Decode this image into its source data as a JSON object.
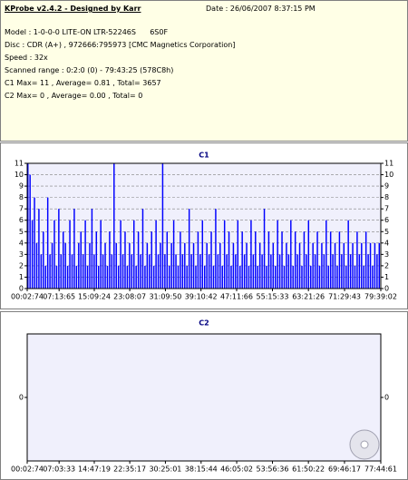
{
  "header": {
    "title": "KProbe v2.4.2 - Designed by Karr",
    "date": "Date : 26/06/2007 8:37:15 PM",
    "lines": [
      "Model : 1-0-0-0 LITE-ON LTR-52246S      6S0F",
      "Disc : CDR (A+) , 972666:795973 [CMC Magnetics Corporation]",
      "Speed : 32x",
      "Scanned range : 0:2:0 (0) - 79:43:25 (578C8h)",
      "C1 Max= 11 , Average= 0.81 , Total= 3657",
      "C2 Max= 0 , Average= 0.00 , Total= 0"
    ]
  },
  "chart_data": [
    {
      "type": "bar",
      "title": "C1",
      "color": "#0000ff",
      "grid": true,
      "values": [
        11,
        10,
        6,
        8,
        4,
        7,
        3,
        5,
        2,
        8,
        3,
        4,
        6,
        2,
        7,
        3,
        5,
        4,
        2,
        6,
        3,
        7,
        2,
        4,
        5,
        3,
        6,
        2,
        4,
        7,
        3,
        5,
        2,
        6,
        3,
        4,
        2,
        5,
        3,
        11,
        4,
        2,
        6,
        3,
        5,
        2,
        4,
        3,
        6,
        2,
        5,
        3,
        7,
        2,
        4,
        3,
        5,
        2,
        6,
        3,
        4,
        11,
        3,
        5,
        2,
        4,
        6,
        3,
        2,
        5,
        3,
        4,
        2,
        7,
        3,
        4,
        2,
        5,
        3,
        6,
        2,
        4,
        3,
        5,
        2,
        7,
        3,
        4,
        2,
        6,
        3,
        5,
        2,
        4,
        3,
        6,
        2,
        5,
        3,
        4,
        2,
        6,
        3,
        5,
        2,
        4,
        3,
        7,
        2,
        5,
        3,
        4,
        2,
        6,
        3,
        5,
        2,
        4,
        3,
        6,
        2,
        5,
        3,
        4,
        2,
        5,
        3,
        6,
        2,
        4,
        3,
        5,
        2,
        4,
        3,
        6,
        2,
        5,
        3,
        4,
        2,
        5,
        3,
        4,
        2,
        6,
        3,
        4,
        2,
        5,
        3,
        4,
        2,
        5,
        3,
        4,
        2,
        4,
        3,
        4
      ],
      "ylim": [
        0,
        11
      ],
      "yticks": [
        0,
        1,
        2,
        3,
        4,
        5,
        6,
        7,
        8,
        9,
        10,
        11
      ],
      "xlim": [
        2.99,
        4779.03
      ],
      "xticks": [
        {
          "value": 2.99,
          "label": "00:02:74"
        },
        {
          "value": 433.87,
          "label": "07:13:65"
        },
        {
          "value": 909.32,
          "label": "15:09:24"
        },
        {
          "value": 1388.09,
          "label": "23:08:07"
        },
        {
          "value": 1869.67,
          "label": "31:09:50"
        },
        {
          "value": 2350.56,
          "label": "39:10:42"
        },
        {
          "value": 2831.88,
          "label": "47:11:66"
        },
        {
          "value": 3315.44,
          "label": "55:15:33"
        },
        {
          "value": 3801.35,
          "label": "63:21:26"
        },
        {
          "value": 4289.57,
          "label": "71:29:43"
        },
        {
          "value": 4779.03,
          "label": "79:39:02"
        }
      ]
    },
    {
      "type": "bar",
      "title": "C2",
      "color": "#0000ff",
      "grid": false,
      "values": [
        0,
        0,
        0,
        0,
        0,
        0,
        0,
        0,
        0,
        0,
        0,
        0,
        0,
        0,
        0,
        0,
        0,
        0,
        0,
        0
      ],
      "ylim": [
        -1,
        1
      ],
      "yticks": [
        0
      ],
      "xlim": [
        2.99,
        4664.81
      ],
      "xticks": [
        {
          "value": 2.99,
          "label": "00:02:74"
        },
        {
          "value": 423.44,
          "label": "07:03:33"
        },
        {
          "value": 887.25,
          "label": "14:47:19"
        },
        {
          "value": 1355.23,
          "label": "22:35:17"
        },
        {
          "value": 1825.01,
          "label": "30:25:01"
        },
        {
          "value": 2295.59,
          "label": "38:15:44"
        },
        {
          "value": 2765.03,
          "label": "46:05:02"
        },
        {
          "value": 3236.48,
          "label": "53:56:36"
        },
        {
          "value": 3710.29,
          "label": "61:50:22"
        },
        {
          "value": 4186.23,
          "label": "69:46:17"
        },
        {
          "value": 4664.81,
          "label": "77:44:61"
        }
      ]
    }
  ]
}
